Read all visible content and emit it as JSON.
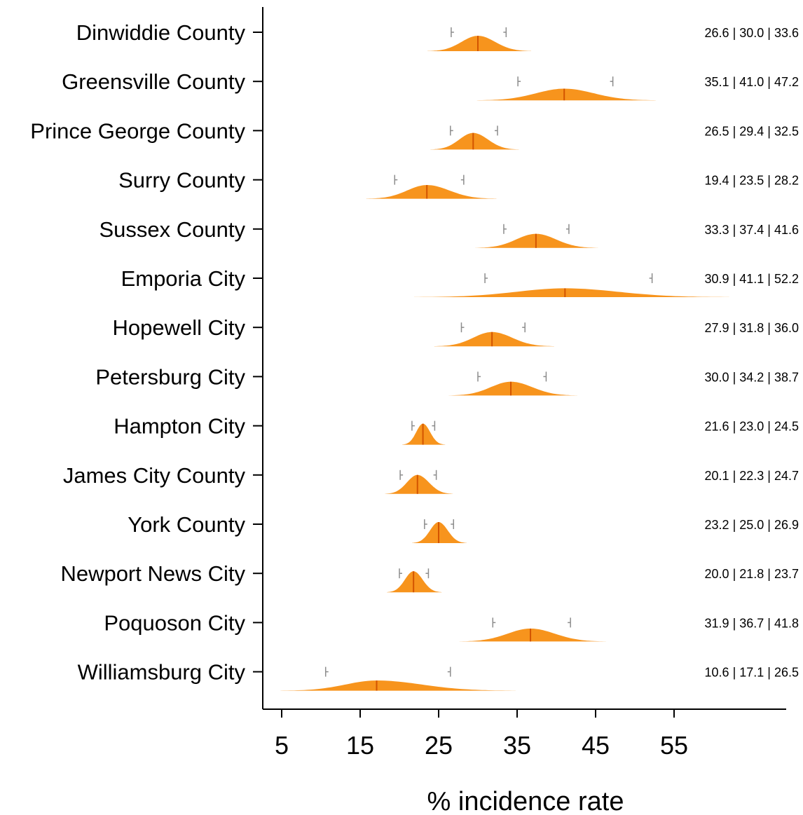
{
  "chart_data": {
    "type": "violin",
    "xlabel": "% incidence rate",
    "xticks": [
      5,
      15,
      25,
      35,
      45,
      55
    ],
    "xlim": [
      2.7,
      68
    ],
    "colors": {
      "fill": "#F7941D",
      "median": "#D35400",
      "ci": "#8c8c8c",
      "axis": "#000000"
    },
    "categories": [
      "Dinwiddie County",
      "Greensville County",
      "Prince George County",
      "Surry County",
      "Sussex County",
      "Emporia City",
      "Hopewell City",
      "Petersburg City",
      "Hampton City",
      "James City County",
      "York County",
      "Newport News City",
      "Poquoson City",
      "Williamsburg City"
    ],
    "series": [
      {
        "low": 26.6,
        "median": 30.0,
        "high": 33.6,
        "label": "26.6 | 30.0 | 33.6"
      },
      {
        "low": 35.1,
        "median": 41.0,
        "high": 47.2,
        "label": "35.1 | 41.0 | 47.2"
      },
      {
        "low": 26.5,
        "median": 29.4,
        "high": 32.5,
        "label": "26.5 | 29.4 | 32.5"
      },
      {
        "low": 19.4,
        "median": 23.5,
        "high": 28.2,
        "label": "19.4 | 23.5 | 28.2"
      },
      {
        "low": 33.3,
        "median": 37.4,
        "high": 41.6,
        "label": "33.3 | 37.4 | 41.6"
      },
      {
        "low": 30.9,
        "median": 41.1,
        "high": 52.2,
        "label": "30.9 | 41.1 | 52.2"
      },
      {
        "low": 27.9,
        "median": 31.8,
        "high": 36.0,
        "label": "27.9 | 31.8 | 36.0"
      },
      {
        "low": 30.0,
        "median": 34.2,
        "high": 38.7,
        "label": "30.0 | 34.2 | 38.7"
      },
      {
        "low": 21.6,
        "median": 23.0,
        "high": 24.5,
        "label": "21.6 | 23.0 | 24.5"
      },
      {
        "low": 20.1,
        "median": 22.3,
        "high": 24.7,
        "label": "20.1 | 22.3 | 24.7"
      },
      {
        "low": 23.2,
        "median": 25.0,
        "high": 26.9,
        "label": "23.2 | 25.0 | 26.9"
      },
      {
        "low": 20.0,
        "median": 21.8,
        "high": 23.7,
        "label": "20.0 | 21.8 | 23.7"
      },
      {
        "low": 31.9,
        "median": 36.7,
        "high": 41.8,
        "label": "31.9 | 36.7 | 41.8"
      },
      {
        "low": 10.6,
        "median": 17.1,
        "high": 26.5,
        "label": "10.6 | 17.1 | 26.5"
      }
    ]
  }
}
